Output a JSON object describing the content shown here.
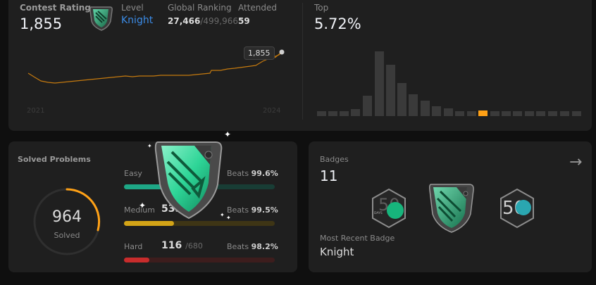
{
  "contest": {
    "rating_label": "Contest Rating",
    "rating": "1,855",
    "level_label": "Level",
    "level": "Knight",
    "global_ranking_label": "Global Ranking",
    "global_rank": "27,466",
    "global_total": "/499,966",
    "attended_label": "Attended",
    "attended": "59",
    "tooltip": "1,855",
    "year_start": "2021",
    "year_end": "2024",
    "top_label": "Top",
    "top_value": "5.72%"
  },
  "solved": {
    "title": "Solved Problems",
    "count": "964",
    "count_label": "Solved",
    "easy": {
      "label": "Easy",
      "beats_label": "Beats",
      "beats_value": "99.6%",
      "fill": 0.42
    },
    "medium": {
      "label": "Medium",
      "solved": "535",
      "beats_label": "Beats",
      "beats_value": "99.5%",
      "fill": 0.33
    },
    "hard": {
      "label": "Hard",
      "solved": "116",
      "total": "/680",
      "beats_label": "Beats",
      "beats_value": "98.2%",
      "fill": 0.17
    }
  },
  "badges": {
    "title": "Badges",
    "count": "11",
    "recent_label": "Most Recent Badge",
    "recent_name": "Knight",
    "badge_days_text": "DAYS",
    "badge_50": "50"
  },
  "colors": {
    "easy": "#1cbaba",
    "medium": "#ffb700",
    "hard": "#f63737",
    "accent": "#ffa116",
    "link": "#007aff"
  }
}
